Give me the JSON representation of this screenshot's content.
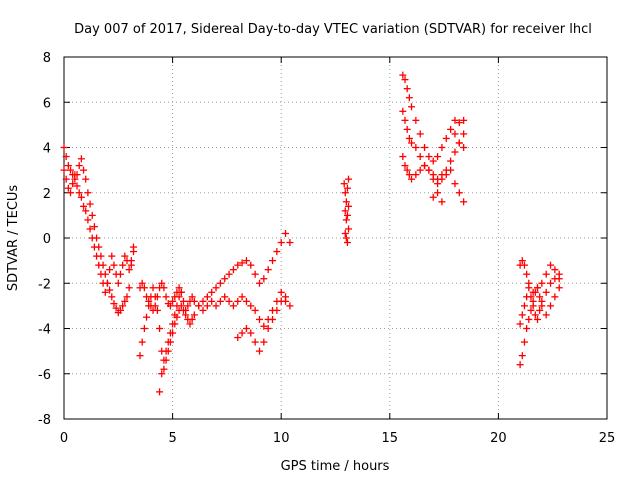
{
  "chart_data": {
    "type": "scatter",
    "title": "Day 007 of 2017, Sidereal Day-to-day VTEC variation (SDTVAR) for receiver lhcl",
    "xlabel": "GPS time / hours",
    "ylabel": "SDTVAR / TECUs",
    "xlim": [
      0,
      25
    ],
    "ylim": [
      -8,
      8
    ],
    "xticks": [
      "0",
      "5",
      "10",
      "15",
      "20",
      "25"
    ],
    "yticks": [
      "8",
      "6",
      "4",
      "2",
      "0",
      "-2",
      "-4",
      "-6",
      "-8"
    ],
    "grid": true,
    "legend": "none",
    "marker": "plus",
    "color": "#ff0000",
    "series": [
      {
        "name": "SDTVAR",
        "x": [
          0.0,
          0.1,
          0.2,
          0.3,
          0.4,
          0.5,
          0.6,
          0.7,
          0.8,
          0.9,
          1.0,
          1.1,
          1.2,
          1.3,
          1.4,
          1.5,
          1.6,
          1.7,
          1.8,
          1.9,
          2.0,
          2.1,
          2.2,
          2.3,
          2.4,
          2.5,
          2.6,
          2.7,
          2.8,
          2.9,
          3.0,
          3.1,
          3.2,
          0.0,
          0.1,
          0.2,
          0.3,
          0.4,
          0.5,
          0.6,
          0.7,
          0.8,
          0.9,
          1.0,
          1.1,
          1.2,
          1.3,
          1.4,
          1.5,
          1.6,
          1.7,
          1.8,
          1.9,
          2.0,
          2.1,
          2.2,
          2.3,
          2.4,
          2.5,
          2.6,
          2.7,
          2.8,
          2.9,
          3.0,
          3.1,
          3.2,
          3.5,
          3.6,
          3.7,
          3.8,
          3.9,
          4.0,
          4.1,
          4.2,
          4.3,
          4.4,
          4.5,
          4.6,
          4.7,
          4.8,
          4.9,
          5.0,
          5.1,
          5.2,
          5.3,
          5.4,
          5.5,
          5.6,
          5.7,
          5.8,
          5.9,
          6.0,
          6.2,
          6.4,
          6.6,
          6.8,
          7.0,
          7.2,
          7.4,
          7.6,
          7.8,
          8.0,
          8.2,
          8.4,
          8.6,
          8.8,
          9.0,
          9.2,
          9.4,
          9.6,
          9.8,
          10.0,
          10.2,
          10.4,
          3.5,
          3.6,
          3.7,
          3.8,
          3.9,
          4.0,
          4.1,
          4.2,
          4.3,
          4.4,
          4.5,
          4.6,
          4.7,
          4.8,
          4.9,
          5.0,
          5.1,
          5.2,
          5.3,
          5.4,
          5.5,
          5.6,
          5.7,
          5.8,
          5.9,
          6.0,
          6.2,
          6.4,
          6.6,
          6.8,
          7.0,
          7.2,
          7.4,
          7.6,
          7.8,
          8.0,
          8.2,
          8.4,
          8.6,
          8.8,
          9.0,
          9.2,
          9.4,
          9.6,
          9.8,
          10.0,
          10.2,
          10.4,
          4.4,
          4.5,
          4.6,
          4.7,
          4.8,
          4.9,
          5.0,
          5.1,
          5.2,
          5.3,
          5.4,
          8.0,
          8.2,
          8.4,
          8.6,
          8.8,
          9.0,
          9.2,
          9.4,
          9.6,
          9.8,
          10.0,
          10.2,
          12.9,
          12.95,
          13.0,
          13.05,
          13.1,
          12.95,
          13.0,
          13.05,
          13.1,
          12.95,
          13.0,
          13.05,
          13.1,
          15.6,
          15.7,
          15.8,
          15.9,
          16.0,
          16.2,
          16.4,
          16.6,
          16.8,
          17.0,
          17.2,
          17.4,
          17.6,
          17.8,
          18.0,
          18.2,
          18.4,
          15.6,
          15.7,
          15.8,
          15.9,
          16.0,
          16.2,
          16.4,
          16.6,
          16.8,
          17.0,
          17.2,
          17.4,
          17.6,
          17.8,
          18.0,
          18.2,
          18.4,
          15.6,
          15.7,
          15.8,
          15.9,
          16.0,
          16.2,
          16.4,
          16.6,
          16.8,
          17.0,
          17.2,
          17.4,
          17.6,
          17.8,
          18.0,
          18.2,
          18.4,
          17.0,
          17.2,
          17.4,
          18.0,
          18.2,
          18.4,
          21.0,
          21.1,
          21.2,
          21.3,
          21.4,
          21.5,
          21.6,
          21.7,
          21.8,
          21.9,
          22.0,
          22.2,
          22.4,
          22.6,
          22.8,
          21.0,
          21.1,
          21.2,
          21.3,
          21.4,
          21.5,
          21.6,
          21.7,
          21.8,
          21.9,
          22.0,
          22.2,
          22.4,
          22.6,
          22.8,
          21.0,
          21.1,
          21.2,
          21.3,
          21.4,
          21.6,
          21.8,
          22.0,
          22.2,
          22.4,
          22.6,
          22.8
        ],
        "y": [
          4.0,
          3.6,
          3.2,
          3.0,
          2.8,
          2.6,
          2.8,
          3.2,
          3.5,
          3.0,
          2.6,
          2.0,
          1.5,
          1.0,
          0.5,
          0.0,
          -0.4,
          -0.8,
          -1.2,
          -1.6,
          -2.0,
          -2.3,
          -2.6,
          -2.9,
          -3.1,
          -3.3,
          -3.2,
          -3.0,
          -2.8,
          -2.6,
          -2.2,
          -1.2,
          -0.4,
          3.0,
          2.6,
          2.2,
          2.0,
          2.4,
          2.8,
          2.3,
          2.0,
          1.8,
          1.4,
          1.2,
          0.8,
          0.4,
          0.0,
          -0.4,
          -0.8,
          -1.2,
          -1.6,
          -2.0,
          -2.4,
          -2.0,
          -1.4,
          -0.8,
          -1.2,
          -1.6,
          -2.0,
          -1.6,
          -1.2,
          -0.8,
          -1.0,
          -1.4,
          -1.0,
          -0.6,
          -5.2,
          -4.6,
          -4.0,
          -3.5,
          -3.0,
          -2.6,
          -2.2,
          -2.6,
          -3.2,
          -4.0,
          -5.0,
          -5.8,
          -5.4,
          -5.0,
          -4.6,
          -4.2,
          -3.8,
          -3.5,
          -3.2,
          -3.0,
          -3.2,
          -3.4,
          -3.6,
          -3.8,
          -3.6,
          -3.4,
          -3.0,
          -2.8,
          -2.6,
          -2.4,
          -2.2,
          -2.0,
          -1.8,
          -1.6,
          -1.4,
          -1.2,
          -1.1,
          -1.0,
          -1.2,
          -1.6,
          -2.0,
          -1.8,
          -1.4,
          -1.0,
          -0.6,
          -0.2,
          0.2,
          -0.2,
          -2.2,
          -2.0,
          -2.2,
          -2.6,
          -2.8,
          -3.0,
          -3.2,
          -3.0,
          -2.6,
          -2.2,
          -2.0,
          -2.2,
          -2.6,
          -2.9,
          -3.0,
          -2.8,
          -2.6,
          -2.4,
          -2.2,
          -2.4,
          -2.8,
          -3.2,
          -3.0,
          -2.8,
          -2.6,
          -2.8,
          -3.0,
          -3.2,
          -3.0,
          -2.8,
          -3.0,
          -2.8,
          -2.6,
          -2.8,
          -3.0,
          -2.8,
          -2.6,
          -2.8,
          -3.0,
          -3.2,
          -3.6,
          -3.9,
          -3.6,
          -3.2,
          -2.8,
          -2.4,
          -2.8,
          -3.0,
          -6.8,
          -6.0,
          -5.4,
          -5.0,
          -4.6,
          -4.2,
          -3.8,
          -3.4,
          -3.0,
          -2.6,
          -2.4,
          -4.4,
          -4.2,
          -4.0,
          -4.2,
          -4.6,
          -5.0,
          -4.6,
          -4.0,
          -3.6,
          -3.2,
          -2.8,
          -2.6,
          2.4,
          2.0,
          1.6,
          2.2,
          2.6,
          1.2,
          0.8,
          1.0,
          1.4,
          0.2,
          0.0,
          -0.2,
          0.4,
          7.2,
          7.0,
          6.6,
          6.2,
          5.8,
          5.2,
          4.6,
          4.0,
          3.6,
          3.4,
          3.6,
          4.0,
          4.4,
          4.8,
          4.6,
          4.2,
          4.0,
          5.6,
          5.2,
          4.8,
          4.4,
          4.2,
          4.0,
          3.6,
          3.2,
          3.0,
          2.8,
          2.6,
          2.8,
          3.0,
          3.4,
          3.8,
          4.2,
          4.6,
          3.6,
          3.2,
          3.0,
          2.8,
          2.6,
          2.8,
          3.0,
          3.2,
          3.0,
          2.6,
          2.4,
          2.6,
          2.8,
          3.0,
          2.4,
          2.0,
          1.6,
          1.8,
          2.0,
          1.6,
          5.2,
          5.1,
          5.2,
          -5.6,
          -5.2,
          -4.6,
          -4.0,
          -3.6,
          -3.2,
          -2.8,
          -2.4,
          -2.2,
          -2.6,
          -3.0,
          -3.4,
          -3.0,
          -2.6,
          -2.2,
          -3.8,
          -3.4,
          -3.0,
          -2.6,
          -2.2,
          -2.6,
          -3.0,
          -3.4,
          -3.6,
          -3.2,
          -2.8,
          -2.4,
          -2.0,
          -1.8,
          -1.6,
          -1.2,
          -1.0,
          -1.2,
          -1.6,
          -2.0,
          -2.4,
          -2.2,
          -2.0,
          -1.6,
          -1.2,
          -1.4,
          -1.8
        ]
      }
    ]
  }
}
